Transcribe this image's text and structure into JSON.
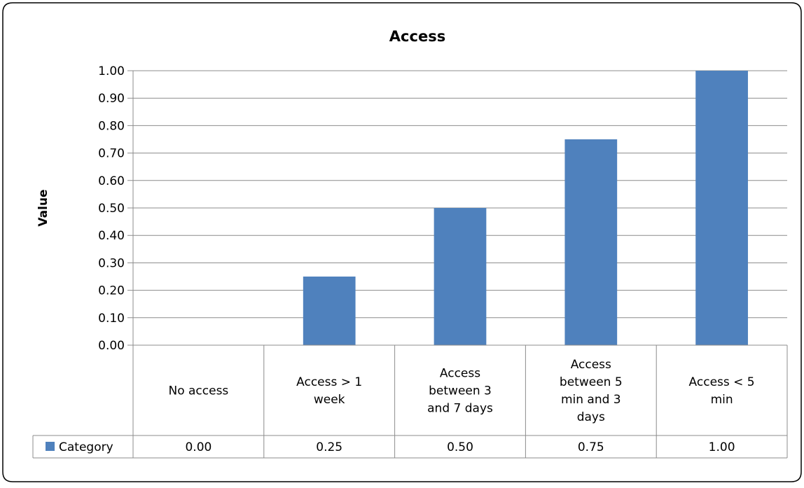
{
  "chart_data": {
    "type": "bar",
    "title": "Access",
    "ylabel": "Value",
    "xlabel": "",
    "ylim": [
      0,
      1
    ],
    "y_ticks": [
      "0.00",
      "0.10",
      "0.20",
      "0.30",
      "0.40",
      "0.50",
      "0.60",
      "0.70",
      "0.80",
      "0.90",
      "1.00"
    ],
    "grid": true,
    "categories": [
      [
        "No access"
      ],
      [
        "Access > 1",
        "week"
      ],
      [
        "Access",
        "between 3",
        "and 7 days"
      ],
      [
        "Access",
        "between 5",
        "min and 3",
        "days"
      ],
      [
        "Access < 5",
        "min"
      ]
    ],
    "series": [
      {
        "name": "Category",
        "values": [
          0.0,
          0.25,
          0.5,
          0.75,
          1.0
        ],
        "value_labels": [
          "0.00",
          "0.25",
          "0.50",
          "0.75",
          "1.00"
        ],
        "color": "#4F81BD"
      }
    ],
    "data_table": true
  }
}
